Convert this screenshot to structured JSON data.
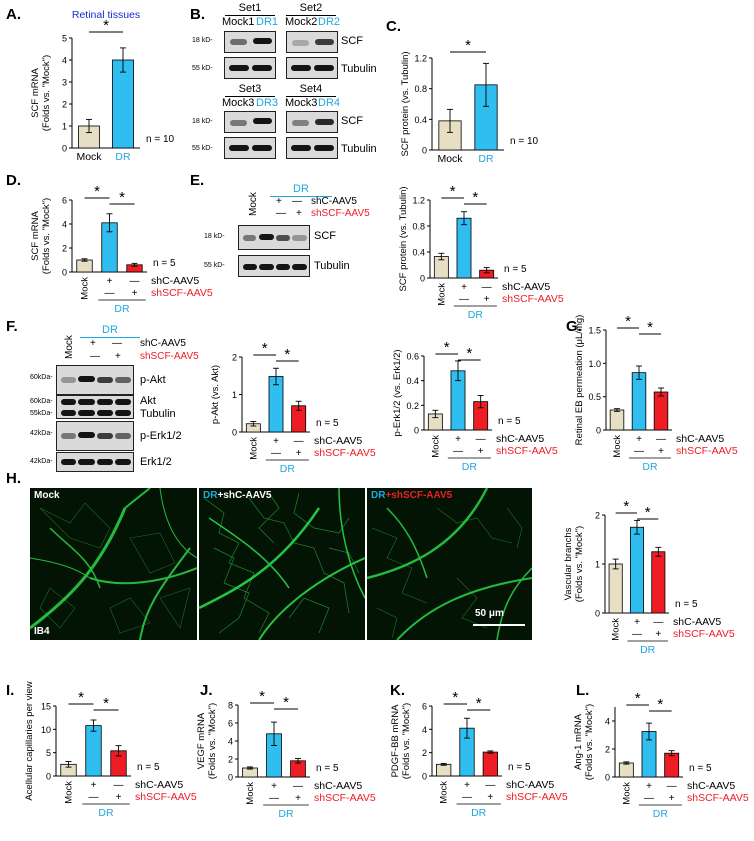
{
  "panels": {
    "A": "A.",
    "B": "B.",
    "C": "C.",
    "D": "D.",
    "E": "E.",
    "F": "F.",
    "G": "G.",
    "H": "H.",
    "I": "I.",
    "J": "J.",
    "K": "K.",
    "L": "L."
  },
  "colors": {
    "mock": "#e6dfc4",
    "dr": "#30bdf0",
    "shscf": "#ee1c24",
    "red_text": "#ee1c24",
    "blue_text": "#1fa8e0",
    "title_blue": "#1a2ad0",
    "vessel": "#2ad64a"
  },
  "labels": {
    "mock": "Mock",
    "dr": "DR",
    "shc": "shC-AAV5",
    "shscf": "shSCF-AAV5",
    "plus": "+",
    "minus": "—",
    "n10": "n = 10",
    "n5": "n = 5",
    "star": "*",
    "retinal_tissues": "Retinal tissues",
    "scf": "SCF",
    "tubulin": "Tubulin",
    "akt": "Akt",
    "pakt": "p-Akt",
    "erk": "Erk1/2",
    "perk": "p-Erk1/2",
    "kd18": "18 kD-",
    "kd55": "55 kD-",
    "kd60": "60kDa-",
    "kd55a": "55kDa-",
    "kd42": "42kDa-",
    "set1": "Set1",
    "set2": "Set2",
    "set3": "Set3",
    "set4": "Set4",
    "mock1": "Mock1",
    "dr1": "DR1",
    "mock2": "Mock2",
    "dr2": "DR2",
    "mock3": "Mock3",
    "dr3": "DR3",
    "dr4": "DR4",
    "ib4": "IB4",
    "scale": "50 μm",
    "ph_mock": "Mock",
    "ph_dr": "DR",
    "ph_shc": "+shC-AAV5",
    "ph_shscf": "+shSCF-AAV5"
  },
  "chart_data": [
    {
      "panel": "A",
      "type": "bar",
      "categories": [
        "Mock",
        "DR"
      ],
      "values": [
        1.0,
        4.0
      ],
      "errors": [
        0.3,
        0.55
      ],
      "ylim": [
        0,
        5
      ],
      "yticks": [
        0,
        1,
        2,
        3,
        4,
        5
      ],
      "ylabel": [
        "SCF mRNA",
        "(Folds vs. \"Mock\")"
      ],
      "title": "Retinal tissues",
      "n": "n = 10",
      "sig": [
        [
          0,
          1
        ]
      ]
    },
    {
      "panel": "C",
      "type": "bar",
      "categories": [
        "Mock",
        "DR"
      ],
      "values": [
        0.38,
        0.85
      ],
      "errors": [
        0.15,
        0.28
      ],
      "ylim": [
        0,
        1.2
      ],
      "yticks": [
        "0",
        "0.4",
        "0.8",
        "1.2"
      ],
      "ylabel": [
        "SCF protein (vs. Tubulin)"
      ],
      "n": "n = 10",
      "sig": [
        [
          0,
          1
        ]
      ]
    },
    {
      "panel": "D",
      "type": "bar",
      "categories": [
        "Mock",
        "DR+shC-AAV5",
        "DR+shSCF-AAV5"
      ],
      "values": [
        1.0,
        4.1,
        0.6
      ],
      "errors": [
        0.1,
        0.75,
        0.12
      ],
      "ylim": [
        0,
        6
      ],
      "yticks": [
        0,
        2,
        4,
        6
      ],
      "ylabel": [
        "SCF mRNA",
        "(Folds vs. \"Mock\")"
      ],
      "n": "n = 5",
      "sig": [
        [
          0,
          1
        ],
        [
          1,
          2
        ]
      ]
    },
    {
      "panel": "E",
      "type": "bar",
      "categories": [
        "Mock",
        "DR+shC-AAV5",
        "DR+shSCF-AAV5"
      ],
      "values": [
        0.33,
        0.92,
        0.12
      ],
      "errors": [
        0.05,
        0.1,
        0.04
      ],
      "ylim": [
        0,
        1.2
      ],
      "yticks": [
        "0",
        "0.4",
        "0.8",
        "1.2"
      ],
      "ylabel": [
        "SCF protein (vs. Tubulin)"
      ],
      "n": "n = 5",
      "sig": [
        [
          0,
          1
        ],
        [
          1,
          2
        ]
      ]
    },
    {
      "panel": "F1",
      "type": "bar",
      "categories": [
        "Mock",
        "DR+shC-AAV5",
        "DR+shSCF-AAV5"
      ],
      "values": [
        0.22,
        1.48,
        0.7
      ],
      "errors": [
        0.06,
        0.22,
        0.12
      ],
      "ylim": [
        0,
        2
      ],
      "yticks": [
        0,
        1,
        2
      ],
      "ylabel": [
        "p-Akt (vs. Akt)"
      ],
      "n": "n = 5",
      "sig": [
        [
          0,
          1
        ],
        [
          1,
          2
        ]
      ]
    },
    {
      "panel": "F2",
      "type": "bar",
      "categories": [
        "Mock",
        "DR+shC-AAV5",
        "DR+shSCF-AAV5"
      ],
      "values": [
        0.13,
        0.48,
        0.23
      ],
      "errors": [
        0.03,
        0.08,
        0.05
      ],
      "ylim": [
        0,
        0.6
      ],
      "yticks": [
        "0",
        "0.2",
        "0.4",
        "0.6"
      ],
      "ylabel": [
        "p-Erk1/2 (vs. Erk1/2)"
      ],
      "n": "n = 5",
      "sig": [
        [
          0,
          1
        ],
        [
          1,
          2
        ]
      ]
    },
    {
      "panel": "G",
      "type": "bar",
      "categories": [
        "Mock",
        "DR+shC-AAV5",
        "DR+shSCF-AAV5"
      ],
      "values": [
        0.3,
        0.86,
        0.57
      ],
      "errors": [
        0.02,
        0.1,
        0.06
      ],
      "ylim": [
        0,
        1.5
      ],
      "yticks": [
        "0",
        "0.5",
        "1.0",
        "1.5"
      ],
      "ylabel": [
        "Retinal EB permeation (μL/mg)"
      ],
      "n": "",
      "sig": [
        [
          0,
          1
        ],
        [
          1,
          2
        ]
      ]
    },
    {
      "panel": "H",
      "type": "bar",
      "categories": [
        "Mock",
        "DR+shC-AAV5",
        "DR+shSCF-AAV5"
      ],
      "values": [
        1.0,
        1.75,
        1.25
      ],
      "errors": [
        0.1,
        0.14,
        0.09
      ],
      "ylim": [
        0,
        2
      ],
      "yticks": [
        0,
        1,
        2
      ],
      "ylabel": [
        "Vascular branchs",
        "(Folds vs. \"Mock\")"
      ],
      "n": "n = 5",
      "sig": [
        [
          0,
          1
        ],
        [
          1,
          2
        ]
      ]
    },
    {
      "panel": "I",
      "type": "bar",
      "categories": [
        "Mock",
        "DR+shC-AAV5",
        "DR+shSCF-AAV5"
      ],
      "values": [
        2.5,
        10.8,
        5.4
      ],
      "errors": [
        0.6,
        1.2,
        1.1
      ],
      "ylim": [
        0,
        15
      ],
      "yticks": [
        0,
        5,
        10,
        15
      ],
      "ylabel": [
        "Acellular capillaries per view"
      ],
      "n": "n = 5",
      "sig": [
        [
          0,
          1
        ],
        [
          1,
          2
        ]
      ]
    },
    {
      "panel": "J",
      "type": "bar",
      "categories": [
        "Mock",
        "DR+shC-AAV5",
        "DR+shSCF-AAV5"
      ],
      "values": [
        1.0,
        4.8,
        1.8
      ],
      "errors": [
        0.12,
        1.3,
        0.25
      ],
      "ylim": [
        0,
        8
      ],
      "yticks": [
        0,
        2,
        4,
        6,
        8
      ],
      "ylabel": [
        "VEGF mRNA",
        "(Folds vs. \"Mock\")"
      ],
      "n": "n = 5",
      "sig": [
        [
          0,
          1
        ],
        [
          1,
          2
        ]
      ]
    },
    {
      "panel": "K",
      "type": "bar",
      "categories": [
        "Mock",
        "DR+shC-AAV5",
        "DR+shSCF-AAV5"
      ],
      "values": [
        1.0,
        4.1,
        2.05
      ],
      "errors": [
        0.08,
        0.85,
        0.1
      ],
      "ylim": [
        0,
        6
      ],
      "yticks": [
        0,
        2,
        4,
        6
      ],
      "ylabel": [
        "PDGF-BB mRNA",
        "(Folds vs. \"Mock\")"
      ],
      "n": "n = 5",
      "sig": [
        [
          0,
          1
        ],
        [
          1,
          2
        ]
      ]
    },
    {
      "panel": "L",
      "type": "bar",
      "categories": [
        "Mock",
        "DR+shC-AAV5",
        "DR+shSCF-AAV5"
      ],
      "values": [
        1.0,
        3.25,
        1.7
      ],
      "errors": [
        0.08,
        0.6,
        0.18
      ],
      "ylim": [
        0,
        5
      ],
      "yticks": [
        0,
        2,
        4
      ],
      "ylabel": [
        "Ang-1 mRNA",
        "(Folds vs. \"Mock\")"
      ],
      "n": "n = 5",
      "sig": [
        [
          0,
          1
        ],
        [
          1,
          2
        ]
      ]
    }
  ]
}
